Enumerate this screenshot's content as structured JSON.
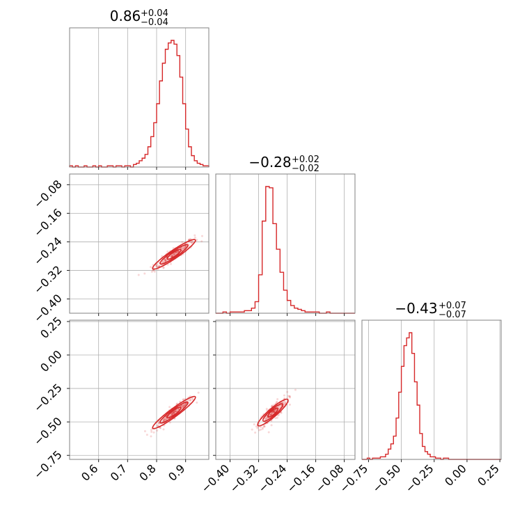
{
  "figure": {
    "accent_color": "#d62728",
    "background": "#ffffff",
    "grid": true,
    "plot_style": "corner plot"
  },
  "chart_data": [
    {
      "type": "histogram",
      "panel": "diag-0",
      "title": {
        "value": "0.86",
        "upper": "+0.04",
        "lower": "−0.04"
      },
      "xlim": [
        0.5,
        0.98
      ],
      "xticks": [
        0.6,
        0.7,
        0.8,
        0.9
      ],
      "xtick_labels": [
        "0.6",
        "0.7",
        "0.8",
        "0.9"
      ],
      "bin_centers": [
        0.505,
        0.515,
        0.525,
        0.535,
        0.545,
        0.555,
        0.565,
        0.575,
        0.585,
        0.595,
        0.605,
        0.615,
        0.625,
        0.635,
        0.645,
        0.655,
        0.665,
        0.675,
        0.685,
        0.695,
        0.705,
        0.715,
        0.725,
        0.735,
        0.745,
        0.755,
        0.765,
        0.775,
        0.785,
        0.795,
        0.805,
        0.815,
        0.825,
        0.835,
        0.845,
        0.855,
        0.865,
        0.875,
        0.885,
        0.895,
        0.905,
        0.915,
        0.925,
        0.935,
        0.945,
        0.955,
        0.965,
        0.975
      ],
      "counts": [
        0.01,
        0.0,
        0.01,
        0.0,
        0.0,
        0.01,
        0.0,
        0.0,
        0.01,
        0.0,
        0.01,
        0.0,
        0.0,
        0.01,
        0.01,
        0.0,
        0.01,
        0.01,
        0.0,
        0.01,
        0.01,
        0.0,
        0.02,
        0.03,
        0.05,
        0.07,
        0.1,
        0.16,
        0.24,
        0.35,
        0.5,
        0.68,
        0.82,
        0.93,
        0.98,
        1.0,
        0.97,
        0.88,
        0.71,
        0.5,
        0.3,
        0.16,
        0.09,
        0.05,
        0.03,
        0.02,
        0.01,
        0.01
      ]
    },
    {
      "type": "scatter",
      "panel": "off-1-0",
      "xlim": [
        0.5,
        0.98
      ],
      "ylim": [
        -0.44,
        -0.05
      ],
      "yticks": [
        -0.08,
        -0.16,
        -0.24,
        -0.32,
        -0.4
      ],
      "ytick_labels": [
        "−0.08",
        "−0.16",
        "−0.24",
        "−0.32",
        "−0.40"
      ],
      "center": [
        0.86,
        -0.275
      ],
      "slope": 0.55,
      "contour_levels": [
        "inner",
        "middle",
        "outer"
      ]
    },
    {
      "type": "histogram",
      "panel": "diag-1",
      "title": {
        "value": "−0.28",
        "upper": "+0.02",
        "lower": "−0.02"
      },
      "xlim": [
        -0.44,
        -0.05
      ],
      "xticks": [
        -0.4,
        -0.32,
        -0.24,
        -0.16,
        -0.08
      ],
      "xtick_labels": [
        "−0.40",
        "−0.32",
        "−0.24",
        "−0.16",
        "−0.08"
      ],
      "bin_centers": [
        -0.435,
        -0.425,
        -0.415,
        -0.405,
        -0.395,
        -0.385,
        -0.375,
        -0.365,
        -0.355,
        -0.345,
        -0.335,
        -0.325,
        -0.315,
        -0.305,
        -0.295,
        -0.285,
        -0.275,
        -0.265,
        -0.255,
        -0.245,
        -0.235,
        -0.225,
        -0.215,
        -0.205,
        -0.195,
        -0.185,
        -0.175,
        -0.165,
        -0.155,
        -0.145,
        -0.135,
        -0.125,
        -0.115,
        -0.105,
        -0.095,
        -0.085,
        -0.075,
        -0.065,
        -0.055
      ],
      "counts": [
        0.0,
        0.0,
        0.01,
        0.0,
        0.01,
        0.01,
        0.01,
        0.01,
        0.02,
        0.02,
        0.04,
        0.09,
        0.3,
        0.72,
        0.99,
        0.98,
        0.7,
        0.5,
        0.32,
        0.18,
        0.1,
        0.06,
        0.04,
        0.03,
        0.02,
        0.01,
        0.01,
        0.01,
        0.01,
        0.0,
        0.0,
        0.01,
        0.0,
        0.0,
        0.0,
        0.0,
        0.0,
        0.0,
        0.0
      ]
    },
    {
      "type": "scatter",
      "panel": "off-2-0",
      "xlim": [
        0.5,
        0.98
      ],
      "ylim": [
        -0.78,
        0.26
      ],
      "yticks": [
        0.25,
        0.0,
        -0.25,
        -0.5,
        -0.75
      ],
      "ytick_labels": [
        "0.25",
        "0.00",
        "−0.25",
        "−0.50",
        "−0.75"
      ],
      "center": [
        0.86,
        -0.43
      ],
      "slope": 1.6,
      "contour_levels": [
        "inner",
        "middle",
        "outer"
      ]
    },
    {
      "type": "scatter",
      "panel": "off-2-1",
      "xlim": [
        -0.44,
        -0.05
      ],
      "ylim": [
        -0.78,
        0.26
      ],
      "center": [
        -0.28,
        -0.43
      ],
      "slope": 2.3,
      "contour_levels": [
        "inner",
        "middle",
        "outer"
      ]
    },
    {
      "type": "histogram",
      "panel": "diag-2",
      "title": {
        "value": "−0.43",
        "upper": "+0.07",
        "lower": "−0.07"
      },
      "xlim": [
        -0.8,
        0.26
      ],
      "xticks": [
        -0.75,
        -0.5,
        -0.25,
        0.0,
        0.25
      ],
      "xtick_labels": [
        "−0.75",
        "−0.50",
        "−0.25",
        "0.00",
        "0.25"
      ],
      "bin_centers": [
        -0.79,
        -0.77,
        -0.75,
        -0.73,
        -0.71,
        -0.69,
        -0.67,
        -0.65,
        -0.63,
        -0.61,
        -0.59,
        -0.57,
        -0.55,
        -0.53,
        -0.51,
        -0.49,
        -0.47,
        -0.45,
        -0.43,
        -0.41,
        -0.39,
        -0.37,
        -0.35,
        -0.33,
        -0.31,
        -0.29,
        -0.27,
        -0.25,
        -0.23,
        -0.21,
        -0.19,
        -0.17,
        -0.15,
        -0.13,
        -0.11,
        -0.09,
        -0.07,
        -0.05,
        -0.03,
        -0.01,
        0.01,
        0.03,
        0.05,
        0.07,
        0.09,
        0.11,
        0.13,
        0.15,
        0.17,
        0.19,
        0.21,
        0.23,
        0.25
      ],
      "counts": [
        0.0,
        0.0,
        0.01,
        0.0,
        0.01,
        0.01,
        0.01,
        0.02,
        0.02,
        0.04,
        0.08,
        0.12,
        0.18,
        0.32,
        0.52,
        0.72,
        0.88,
        0.94,
        0.98,
        0.82,
        0.6,
        0.42,
        0.2,
        0.1,
        0.06,
        0.04,
        0.02,
        0.02,
        0.01,
        0.01,
        0.0,
        0.01,
        0.01,
        0.0,
        0.0,
        0.0,
        0.0,
        0.0,
        0.0,
        0.0,
        0.0,
        0.0,
        0.0,
        0.0,
        0.0,
        0.0,
        0.0,
        0.0,
        0.0,
        0.0,
        0.0,
        0.0,
        0.0
      ]
    }
  ]
}
